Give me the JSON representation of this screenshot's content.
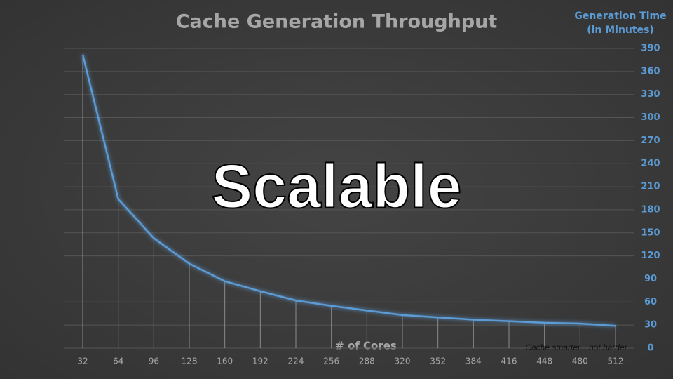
{
  "chart_data": {
    "type": "line",
    "title": "Cache Generation Throughput",
    "y_axis_title": [
      "Generation Time",
      "(in Minutes)"
    ],
    "x_axis_title": "# of Cores",
    "annotations": [
      "Scalable",
      "Cache smarter…not harder"
    ],
    "categories": [
      "32",
      "64",
      "96",
      "128",
      "160",
      "192",
      "224",
      "256",
      "288",
      "320",
      "352",
      "384",
      "416",
      "448",
      "480",
      "512"
    ],
    "values": [
      382,
      194,
      143,
      110,
      87,
      74,
      62,
      55,
      49,
      43,
      40,
      37,
      35,
      33,
      32,
      29
    ],
    "color": "#5b9bd5",
    "ylim": [
      0,
      390
    ],
    "yticks": [
      0,
      30,
      60,
      90,
      120,
      150,
      180,
      210,
      240,
      270,
      300,
      330,
      360,
      390
    ],
    "grid": true,
    "drop_lines": true
  }
}
